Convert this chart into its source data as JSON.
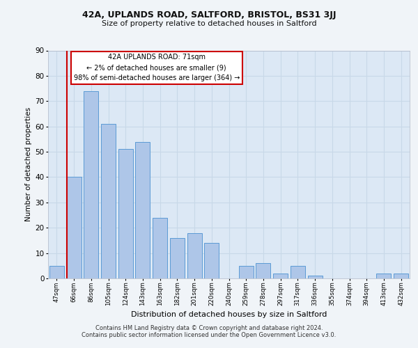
{
  "title1": "42A, UPLANDS ROAD, SALTFORD, BRISTOL, BS31 3JJ",
  "title2": "Size of property relative to detached houses in Saltford",
  "xlabel": "Distribution of detached houses by size in Saltford",
  "ylabel": "Number of detached properties",
  "categories": [
    "47sqm",
    "66sqm",
    "86sqm",
    "105sqm",
    "124sqm",
    "143sqm",
    "163sqm",
    "182sqm",
    "201sqm",
    "220sqm",
    "240sqm",
    "259sqm",
    "278sqm",
    "297sqm",
    "317sqm",
    "336sqm",
    "355sqm",
    "374sqm",
    "394sqm",
    "413sqm",
    "432sqm"
  ],
  "values": [
    5,
    40,
    74,
    61,
    51,
    54,
    24,
    16,
    18,
    14,
    0,
    5,
    6,
    2,
    5,
    1,
    0,
    0,
    0,
    2,
    2
  ],
  "bar_color": "#aec6e8",
  "bar_edge_color": "#5b9bd5",
  "vline_color": "#cc0000",
  "vline_x_index": 1,
  "annotation_text": "42A UPLANDS ROAD: 71sqm\n← 2% of detached houses are smaller (9)\n98% of semi-detached houses are larger (364) →",
  "annotation_box_color": "#ffffff",
  "annotation_box_edge_color": "#cc0000",
  "ylim": [
    0,
    90
  ],
  "yticks": [
    0,
    10,
    20,
    30,
    40,
    50,
    60,
    70,
    80,
    90
  ],
  "grid_color": "#c8d8e8",
  "background_color": "#dce8f5",
  "fig_background_color": "#f0f4f8",
  "footer1": "Contains HM Land Registry data © Crown copyright and database right 2024.",
  "footer2": "Contains public sector information licensed under the Open Government Licence v3.0."
}
